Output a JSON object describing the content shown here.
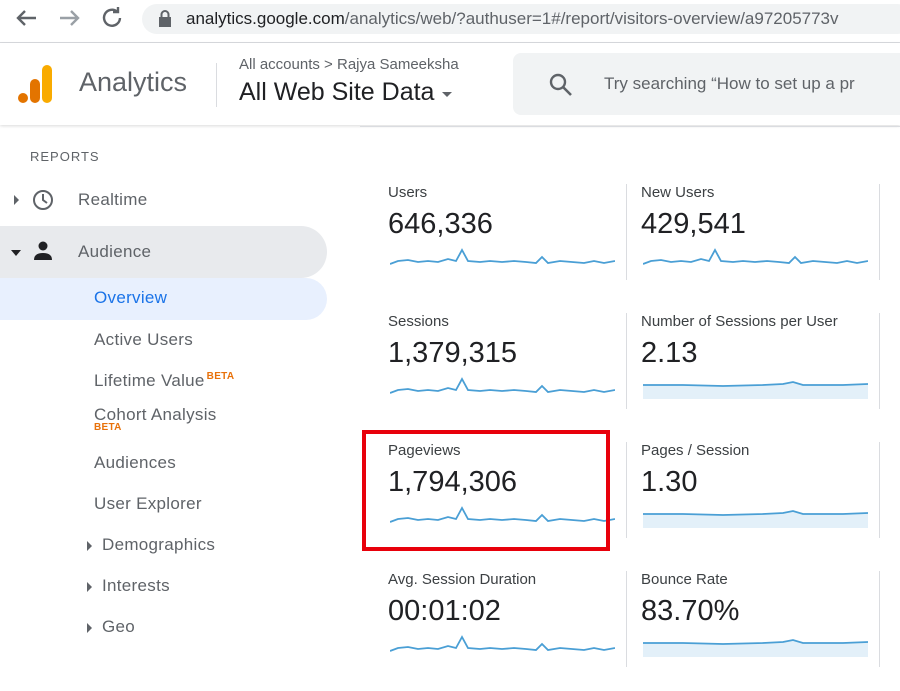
{
  "browser": {
    "url_host": "analytics.google.com",
    "url_path": "/analytics/web/?authuser=1#/report/visitors-overview/a97205773v"
  },
  "header": {
    "product": "Analytics",
    "breadcrumb": "All accounts",
    "account": "Rajya Sameeksha",
    "view": "All Web Site Data",
    "search_placeholder": "Try searching “How to set up a pr"
  },
  "sidebar": {
    "section": "REPORTS",
    "items": [
      {
        "label": "Realtime"
      },
      {
        "label": "Audience"
      },
      {
        "label": "Overview"
      },
      {
        "label": "Active Users"
      },
      {
        "label": "Lifetime Value",
        "badge": "BETA"
      },
      {
        "label": "Cohort Analysis",
        "badge": "BETA"
      },
      {
        "label": "Audiences"
      },
      {
        "label": "User Explorer"
      },
      {
        "label": "Demographics"
      },
      {
        "label": "Interests"
      },
      {
        "label": "Geo"
      }
    ]
  },
  "metrics": [
    {
      "label": "Users",
      "value": "646,336"
    },
    {
      "label": "New Users",
      "value": "429,541"
    },
    {
      "label": "Sessions",
      "value": "1,379,315"
    },
    {
      "label": "Number of Sessions per User",
      "value": "2.13"
    },
    {
      "label": "Pageviews",
      "value": "1,794,306"
    },
    {
      "label": "Pages / Session",
      "value": "1.30"
    },
    {
      "label": "Avg. Session Duration",
      "value": "00:01:02"
    },
    {
      "label": "Bounce Rate",
      "value": "83.70%"
    }
  ]
}
